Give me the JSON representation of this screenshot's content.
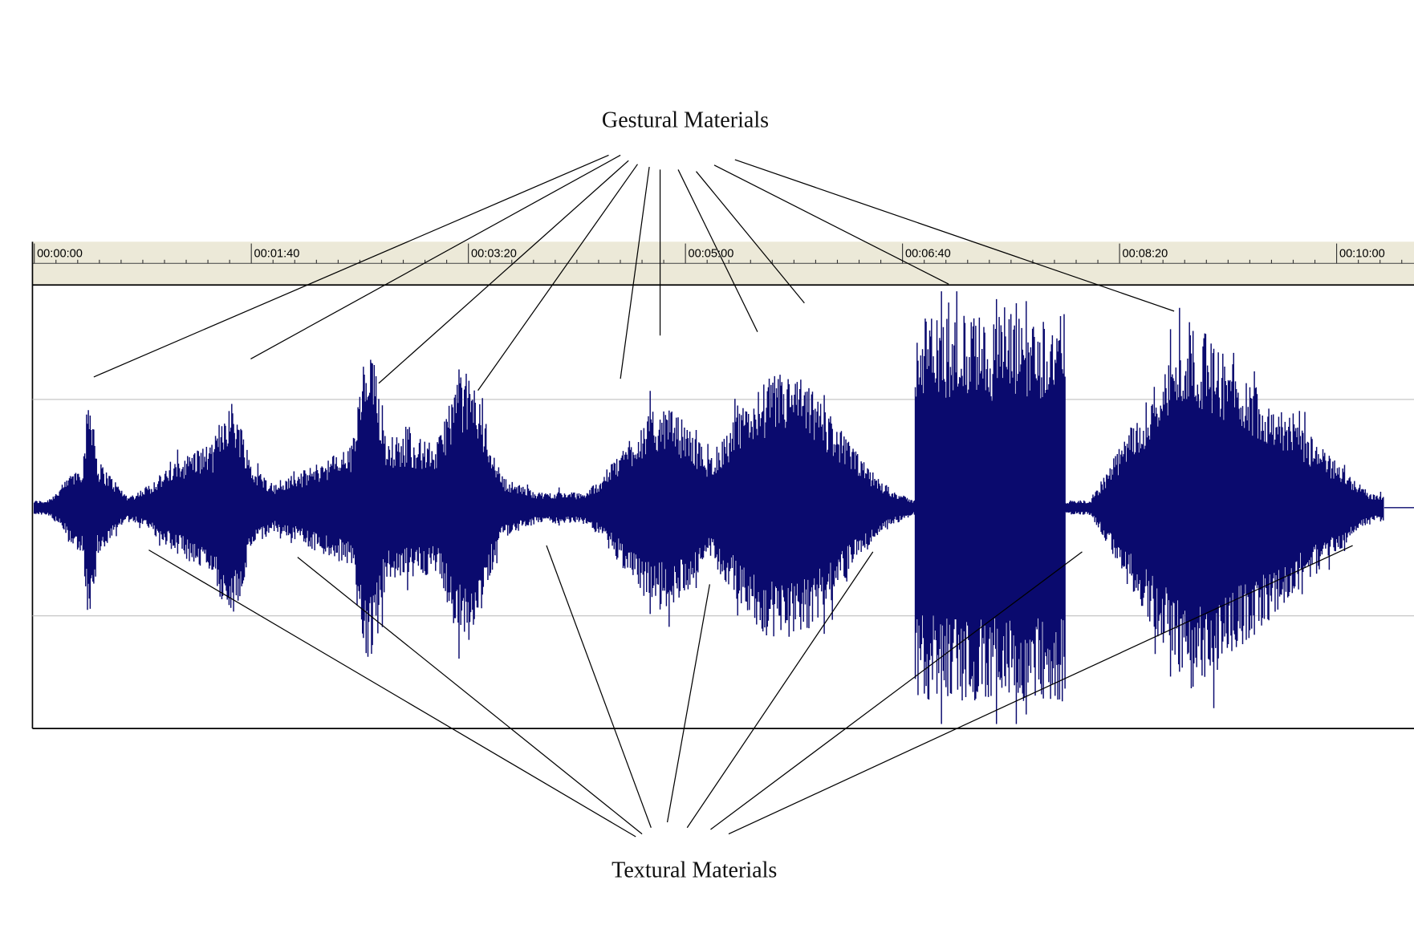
{
  "annotations": {
    "top": "Gestural Materials",
    "bottom": "Textural Materials"
  },
  "ruler": {
    "labels": [
      "00:00:00",
      "00:01:40",
      "00:03:20",
      "00:05:00",
      "00:06:40",
      "00:08:20",
      "00:10:00"
    ]
  }
}
